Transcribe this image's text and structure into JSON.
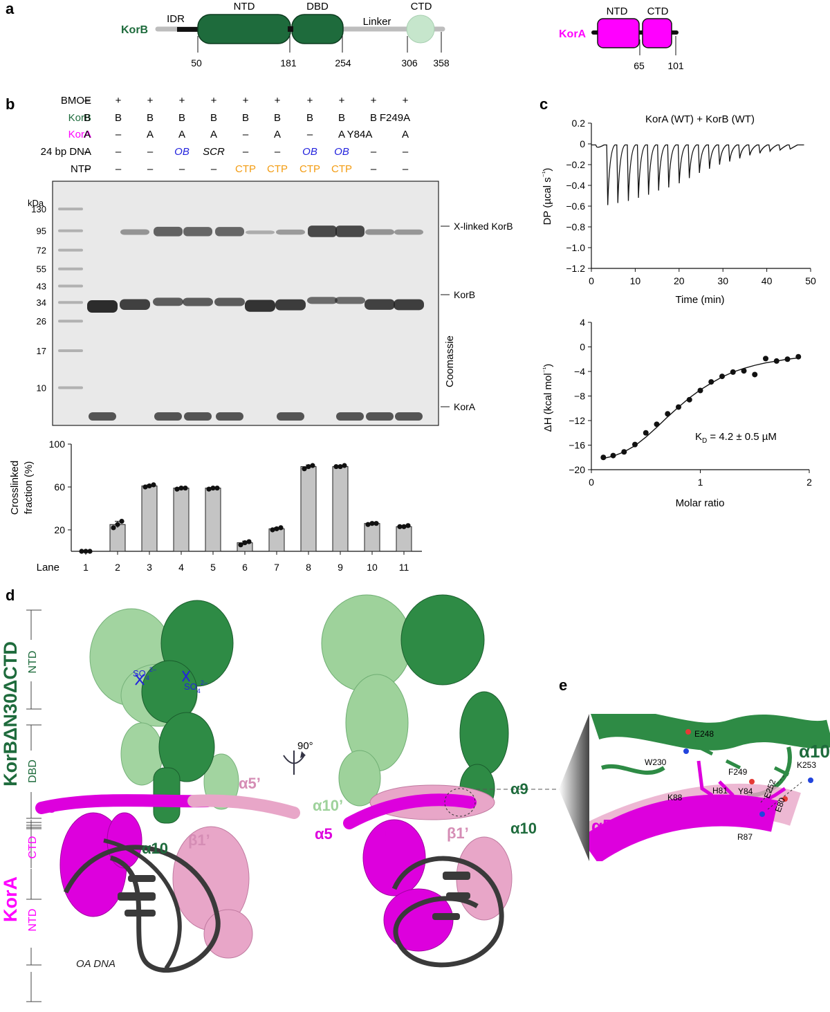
{
  "panel_labels": {
    "a": "a",
    "b": "b",
    "c": "c",
    "d": "d",
    "e": "e"
  },
  "colors": {
    "korb_dark": "#1e6b3c",
    "korb_light": "#9ed29b",
    "korb_ctd": "#c6e6cc",
    "kora": "#ff00ff",
    "kora_light": "#e8a6c8",
    "dna": "#3a3a3a",
    "ctp": "#f39c12",
    "ob": "#2222dd",
    "bar": "#c4c4c4"
  },
  "panel_a": {
    "korb": {
      "name": "KorB",
      "domains": [
        "IDR",
        "NTD",
        "DBD",
        "Linker",
        "CTD"
      ],
      "positions": [
        "50",
        "181",
        "254",
        "306",
        "358"
      ]
    },
    "kora": {
      "name": "KorA",
      "domains": [
        "NTD",
        "CTD"
      ],
      "positions": [
        "65",
        "101"
      ]
    }
  },
  "panel_b": {
    "row_labels": [
      "BMOE",
      "KorB",
      "KorA",
      "24 bp DNA",
      "NTP"
    ],
    "rows": {
      "bmoe": [
        "–",
        "+",
        "+",
        "+",
        "+",
        "+",
        "+",
        "+",
        "+",
        "+",
        "+"
      ],
      "korb": [
        "B",
        "B",
        "B",
        "B",
        "B",
        "B",
        "B",
        "B",
        "B",
        "B",
        "F249A"
      ],
      "kora": [
        "A",
        "–",
        "A",
        "A",
        "A",
        "–",
        "A",
        "–",
        "A",
        "Y84A",
        "A"
      ],
      "dna": [
        "–",
        "–",
        "–",
        "OB",
        "SCR",
        "–",
        "–",
        "OB",
        "OB",
        "–",
        "–"
      ],
      "ntp": [
        "–",
        "–",
        "–",
        "–",
        "–",
        "CTP",
        "CTP",
        "CTP",
        "CTP",
        "–",
        "–"
      ]
    },
    "gel": {
      "kda_label": "kDa",
      "markers": [
        {
          "label": "130",
          "kda": 130
        },
        {
          "label": "95",
          "kda": 95
        },
        {
          "label": "72",
          "kda": 72
        },
        {
          "label": "55",
          "kda": 55
        },
        {
          "label": "43",
          "kda": 43
        },
        {
          "label": "34",
          "kda": 34
        },
        {
          "label": "26",
          "kda": 26
        },
        {
          "label": "17",
          "kda": 17
        },
        {
          "label": "10",
          "kda": 10
        }
      ],
      "band_labels": [
        "X-linked KorB",
        "KorB",
        "KorA"
      ],
      "stain_label": "Coomassie"
    }
  },
  "chart_data": [
    {
      "type": "bar",
      "categories": [
        "1",
        "2",
        "3",
        "4",
        "5",
        "6",
        "7",
        "8",
        "9",
        "10",
        "11"
      ],
      "values": [
        0,
        25,
        61,
        59,
        59,
        8,
        21,
        79,
        79,
        26,
        23
      ],
      "replicates": [
        [
          0,
          0,
          0
        ],
        [
          22,
          25,
          28
        ],
        [
          60,
          61,
          62
        ],
        [
          58,
          59,
          59
        ],
        [
          58,
          59,
          59
        ],
        [
          6,
          8,
          9
        ],
        [
          20,
          21,
          22
        ],
        [
          77,
          79,
          80
        ],
        [
          79,
          79,
          80
        ],
        [
          25,
          26,
          26
        ],
        [
          23,
          23,
          24
        ]
      ],
      "errors": [
        0,
        3,
        1,
        0.5,
        0.5,
        1.5,
        1,
        1.5,
        0.5,
        0.5,
        0.5
      ],
      "xlabel": "Lane",
      "ylabel": "Crosslinked fraction (%)",
      "ylabel_lines": [
        "Crosslinked",
        "fraction (%)"
      ],
      "yticks": [
        20,
        60,
        100
      ],
      "ylim": [
        0,
        100
      ]
    },
    {
      "type": "line",
      "title": "KorA (WT) + KorB (WT)",
      "xlabel": "Time (min)",
      "ylabel": "DP (µcal s⁻¹)",
      "ylabel_lines": [
        "DP (µcal s",
        "⁻¹",
        ")"
      ],
      "xlim": [
        0,
        50
      ],
      "ylim": [
        -1.2,
        0.2
      ],
      "xticks": [
        0,
        10,
        20,
        30,
        40,
        50
      ],
      "yticks": [
        0.2,
        0,
        -0.2,
        -0.4,
        -0.6,
        -0.8,
        -1.0,
        -1.2
      ],
      "ytick_labels": [
        "0.2",
        "0",
        "−0.2",
        "−0.4",
        "−0.6",
        "−0.8",
        "−1.0",
        "−1.2"
      ],
      "baseline": -0.01,
      "injections": [
        {
          "t": 1.0,
          "peak": -0.03
        },
        {
          "t": 3.5,
          "peak": -0.59
        },
        {
          "t": 5.8,
          "peak": -0.57
        },
        {
          "t": 8.2,
          "peak": -0.55
        },
        {
          "t": 10.5,
          "peak": -0.52
        },
        {
          "t": 12.8,
          "peak": -0.49
        },
        {
          "t": 15.1,
          "peak": -0.45
        },
        {
          "t": 17.4,
          "peak": -0.42
        },
        {
          "t": 19.8,
          "peak": -0.38
        },
        {
          "t": 22.1,
          "peak": -0.33
        },
        {
          "t": 24.4,
          "peak": -0.28
        },
        {
          "t": 26.7,
          "peak": -0.24
        },
        {
          "t": 29.0,
          "peak": -0.2
        },
        {
          "t": 31.3,
          "peak": -0.17
        },
        {
          "t": 33.6,
          "peak": -0.14
        },
        {
          "t": 35.9,
          "peak": -0.11
        },
        {
          "t": 38.2,
          "peak": -0.09
        },
        {
          "t": 40.5,
          "peak": -0.07
        },
        {
          "t": 42.8,
          "peak": -0.06
        },
        {
          "t": 45.1,
          "peak": -0.05
        }
      ]
    },
    {
      "type": "scatter",
      "xlabel": "Molar ratio",
      "ylabel": "ΔH (kcal mol⁻¹)",
      "ylabel_lines": [
        "ΔH (kcal mol",
        "⁻¹",
        ")"
      ],
      "xlim": [
        0,
        2
      ],
      "ylim": [
        -20,
        4
      ],
      "xticks": [
        0,
        1,
        2
      ],
      "yticks": [
        4,
        0,
        -4,
        -8,
        -12,
        -16,
        -20
      ],
      "ytick_labels": [
        "4",
        "0",
        "−4",
        "−8",
        "−12",
        "−16",
        "−20"
      ],
      "x": [
        0.11,
        0.2,
        0.3,
        0.4,
        0.5,
        0.6,
        0.7,
        0.8,
        0.9,
        1.0,
        1.1,
        1.2,
        1.3,
        1.4,
        1.5,
        1.6,
        1.7,
        1.8,
        1.9
      ],
      "y": [
        -18.0,
        -17.7,
        -17.1,
        -15.9,
        -14.0,
        -12.6,
        -10.9,
        -9.8,
        -8.6,
        -7.1,
        -5.7,
        -4.8,
        -4.1,
        -3.9,
        -4.5,
        -1.9,
        -2.3,
        -2.0,
        -1.6
      ],
      "fit": [
        [
          0.1,
          -18.2
        ],
        [
          0.2,
          -17.8
        ],
        [
          0.3,
          -17.1
        ],
        [
          0.4,
          -16.1
        ],
        [
          0.5,
          -14.7
        ],
        [
          0.6,
          -13.1
        ],
        [
          0.7,
          -11.4
        ],
        [
          0.8,
          -9.8
        ],
        [
          0.9,
          -8.3
        ],
        [
          1.0,
          -7.0
        ],
        [
          1.1,
          -5.9
        ],
        [
          1.2,
          -4.9
        ],
        [
          1.3,
          -4.1
        ],
        [
          1.4,
          -3.5
        ],
        [
          1.5,
          -3.0
        ],
        [
          1.6,
          -2.6
        ],
        [
          1.7,
          -2.3
        ],
        [
          1.8,
          -2.0
        ],
        [
          1.9,
          -1.8
        ]
      ],
      "annotation": "K",
      "annotation_sub": "D",
      "annotation_rest": " = 4.2 ± 0.5 µM"
    }
  ],
  "panel_d": {
    "protein_korb": "KorBΔN30ΔCTD",
    "protein_kora": "KorA",
    "korb_domains": [
      "NTD",
      "DBD"
    ],
    "kora_domains": [
      "CTD",
      "NTD"
    ],
    "rotation": "90°",
    "labels_left": [
      "α5",
      "α10",
      "α5’",
      "β1’",
      "OA DNA"
    ],
    "labels_right": [
      "α10’",
      "α9",
      "α10",
      "α5",
      "β1",
      "β1’"
    ],
    "ligand": "SO",
    "ligand_sub": "4",
    "ligand_sup": "2–"
  },
  "panel_e": {
    "helix_labels": [
      "α10",
      "α5"
    ],
    "residues": [
      "E248",
      "W230",
      "F249",
      "K253",
      "E252",
      "H81",
      "Y84",
      "K88",
      "E80",
      "R87"
    ]
  }
}
